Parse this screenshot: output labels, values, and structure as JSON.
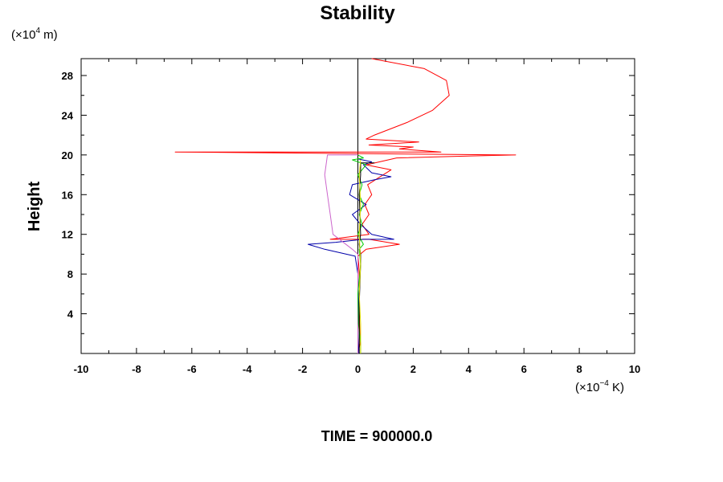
{
  "chart_data": {
    "type": "line",
    "title": "Stability",
    "ylabel": "Height",
    "y_unit_prefix": "(×10",
    "y_unit_exp": "4",
    "y_unit_suffix": " m)",
    "x_unit_prefix": "(×10",
    "x_unit_exp": "−4",
    "x_unit_suffix": " K)",
    "footer": "TIME = 900000.0",
    "xlim": [
      -10,
      10
    ],
    "ylim": [
      0,
      29.7
    ],
    "x_ticks": [
      "-10",
      "-8",
      "-6",
      "-4",
      "-2",
      "0",
      "2",
      "4",
      "6",
      "8",
      "10"
    ],
    "y_ticks": [
      "4",
      "8",
      "12",
      "16",
      "20",
      "24",
      "28"
    ],
    "zero_line_x": 0,
    "series": [
      {
        "color": "#ff0000",
        "points": [
          [
            0,
            0
          ],
          [
            0.08,
            1
          ],
          [
            0.06,
            3
          ],
          [
            0.05,
            5
          ],
          [
            0.06,
            7
          ],
          [
            0.03,
            9
          ],
          [
            0.0,
            9.8
          ],
          [
            0.3,
            10.5
          ],
          [
            1.5,
            11
          ],
          [
            0.4,
            11.5
          ],
          [
            -1,
            11.5
          ],
          [
            0.4,
            12
          ],
          [
            0.15,
            13
          ],
          [
            0.4,
            14
          ],
          [
            0.25,
            15
          ],
          [
            0.5,
            16
          ],
          [
            0.35,
            17
          ],
          [
            1.2,
            18.5
          ],
          [
            0.3,
            19
          ],
          [
            1.4,
            19.7
          ],
          [
            4.1,
            19.9
          ],
          [
            5.7,
            20
          ],
          [
            -6.6,
            20.3
          ],
          [
            3,
            20.3
          ],
          [
            1.5,
            20.6
          ],
          [
            2,
            20.8
          ],
          [
            0.4,
            21
          ],
          [
            2.2,
            21.3
          ],
          [
            0.3,
            21.6
          ],
          [
            0.6,
            22
          ],
          [
            1.8,
            23.3
          ],
          [
            2.7,
            24.5
          ],
          [
            3.3,
            26
          ],
          [
            3.2,
            27.5
          ],
          [
            2.4,
            28.7
          ],
          [
            0.5,
            29.7
          ]
        ]
      },
      {
        "color": "#0000aa",
        "points": [
          [
            0.02,
            0
          ],
          [
            0.05,
            2
          ],
          [
            0.03,
            5
          ],
          [
            0,
            8
          ],
          [
            -0.1,
            9.8
          ],
          [
            -1.2,
            10.5
          ],
          [
            -1.8,
            11
          ],
          [
            -0.8,
            11.2
          ],
          [
            0.2,
            11.5
          ],
          [
            1.3,
            11.5
          ],
          [
            0.5,
            12
          ],
          [
            0.1,
            13
          ],
          [
            -0.2,
            14
          ],
          [
            0.3,
            15
          ],
          [
            -0.3,
            16
          ],
          [
            -0.2,
            17
          ],
          [
            0.6,
            17.5
          ],
          [
            1.2,
            17.8
          ],
          [
            0.5,
            18.2
          ],
          [
            0.2,
            19
          ],
          [
            0.5,
            19.3
          ],
          [
            0,
            19.6
          ]
        ]
      },
      {
        "color": "#cc66cc",
        "points": [
          [
            0,
            0
          ],
          [
            0,
            9
          ],
          [
            0,
            10
          ],
          [
            -0.2,
            10.5
          ],
          [
            -0.9,
            12
          ],
          [
            -1,
            14
          ],
          [
            -1.1,
            16
          ],
          [
            -1.2,
            18
          ],
          [
            -1.1,
            20
          ],
          [
            -0.3,
            20
          ],
          [
            0,
            20
          ]
        ]
      },
      {
        "color": "#00cc00",
        "points": [
          [
            0.1,
            0
          ],
          [
            0.1,
            1
          ],
          [
            0.02,
            3
          ],
          [
            0,
            6
          ],
          [
            0.1,
            9
          ],
          [
            0.05,
            10.5
          ],
          [
            0.2,
            11
          ],
          [
            0.0,
            12
          ],
          [
            0.15,
            13
          ],
          [
            0.05,
            14
          ],
          [
            0.2,
            15
          ],
          [
            0.05,
            16
          ],
          [
            0.15,
            17
          ],
          [
            0.0,
            18
          ],
          [
            0.3,
            19
          ],
          [
            -0.2,
            19.5
          ],
          [
            0.2,
            19.7
          ],
          [
            0,
            20
          ]
        ]
      },
      {
        "color": "#000000",
        "points": [
          [
            0.05,
            0
          ],
          [
            0.05,
            5
          ],
          [
            0.1,
            9
          ],
          [
            0.1,
            10
          ],
          [
            0.05,
            11
          ],
          [
            0.1,
            12
          ],
          [
            0.05,
            16
          ],
          [
            0.1,
            18
          ],
          [
            0.1,
            19.2
          ],
          [
            0.6,
            19.2
          ]
        ]
      },
      {
        "color": "#dddd00",
        "points": [
          [
            0.1,
            0
          ],
          [
            0.1,
            3
          ],
          [
            0.05,
            6
          ],
          [
            0.1,
            9
          ],
          [
            0.05,
            12
          ],
          [
            0.1,
            15
          ],
          [
            0.05,
            18
          ],
          [
            0.1,
            19.5
          ]
        ]
      }
    ]
  }
}
